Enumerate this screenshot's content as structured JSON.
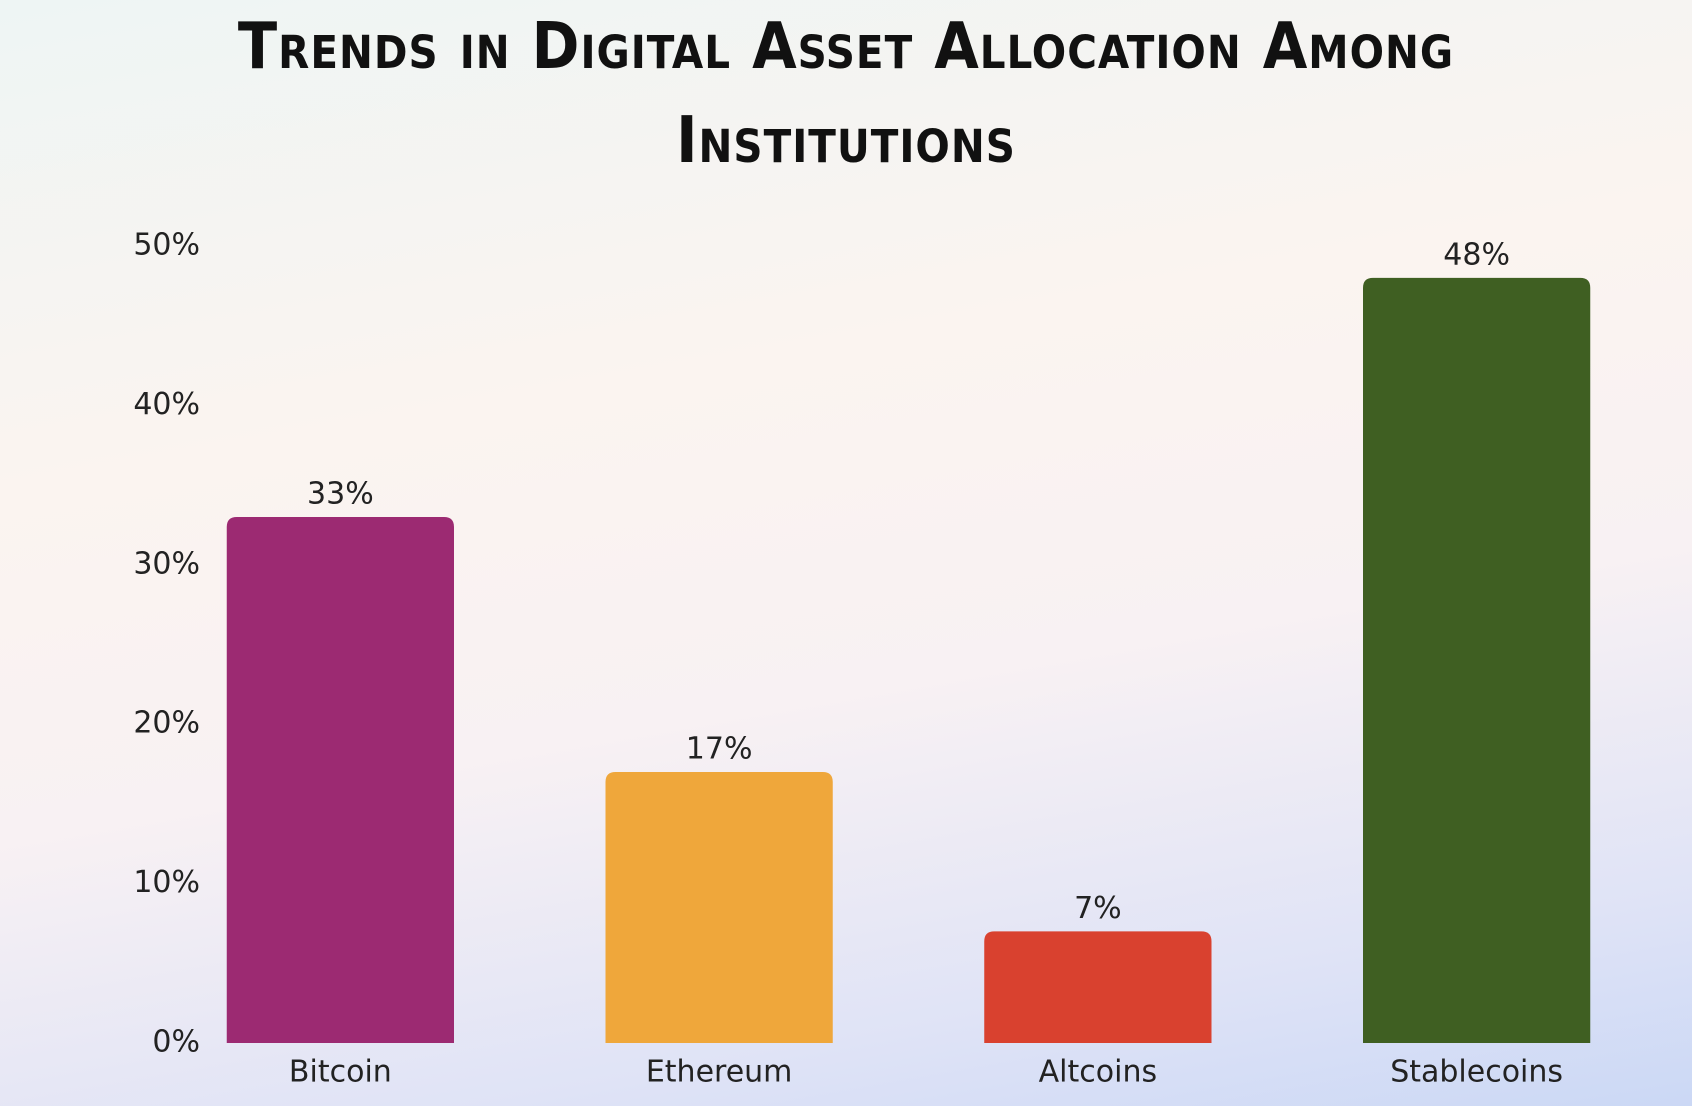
{
  "chart_data": {
    "type": "bar",
    "title": "Trends in Digital Asset Allocation Among Institutions",
    "categories": [
      "Bitcoin",
      "Ethereum",
      "Altcoins",
      "Stablecoins"
    ],
    "values": [
      33,
      17,
      7,
      48
    ],
    "value_labels": [
      "33%",
      "17%",
      "7%",
      "48%"
    ],
    "colors": [
      "#9c2a72",
      "#efa73b",
      "#d9412f",
      "#3f5f22"
    ],
    "ylim": [
      0,
      50
    ],
    "yticks": [
      {
        "value": 0,
        "label": "0%"
      },
      {
        "value": 10,
        "label": "10%"
      },
      {
        "value": 20,
        "label": "20%"
      },
      {
        "value": 30,
        "label": "30%"
      },
      {
        "value": 40,
        "label": "40%"
      },
      {
        "value": 50,
        "label": "50%"
      }
    ],
    "grid": false
  }
}
